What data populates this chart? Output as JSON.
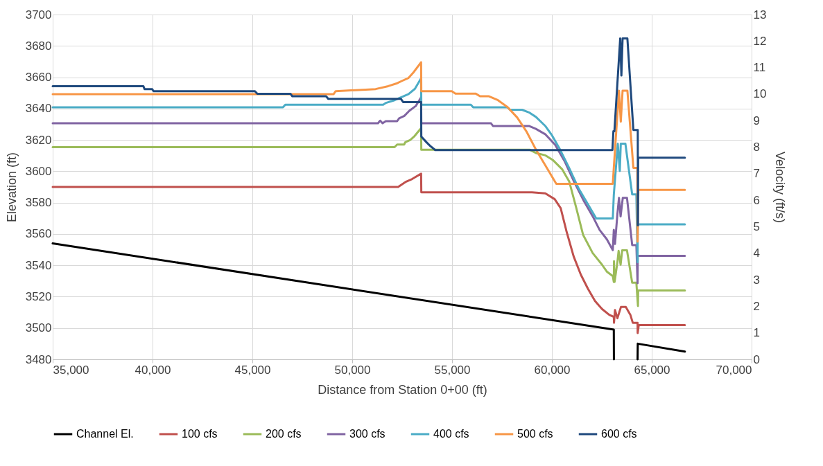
{
  "chart_data": {
    "type": "line",
    "xlabel": "Distance from Station 0+00 (ft)",
    "ylabel": "Elevation (ft)",
    "y2label": "Velocity (ft/s)",
    "xlim": [
      35000,
      70000
    ],
    "xticks": [
      {
        "value": 35000,
        "label": "35,000"
      },
      {
        "value": 40000,
        "label": "40,000"
      },
      {
        "value": 45000,
        "label": "45,000"
      },
      {
        "value": 50000,
        "label": "50,000"
      },
      {
        "value": 55000,
        "label": "55,000"
      },
      {
        "value": 60000,
        "label": "60,000"
      },
      {
        "value": 65000,
        "label": "65,000"
      },
      {
        "value": 70000,
        "label": "70,000"
      }
    ],
    "ylim": [
      3480,
      3700
    ],
    "yticks": [
      3480,
      3500,
      3520,
      3540,
      3560,
      3580,
      3600,
      3620,
      3640,
      3660,
      3680,
      3700
    ],
    "y2lim": [
      0,
      13
    ],
    "y2ticks": [
      0,
      1,
      2,
      3,
      4,
      5,
      6,
      7,
      8,
      9,
      10,
      11,
      12,
      13
    ],
    "grid": true,
    "legend": "bottom",
    "series": [
      {
        "name": "Channel El.",
        "color": "#000000",
        "x": [
          35000,
          63100,
          63105,
          63700,
          64290,
          64300,
          66660
        ],
        "values": [
          3554,
          3499,
          3480,
          null,
          3480,
          3490,
          3485
        ]
      },
      {
        "name": "100 cfs",
        "color": "#c0504d",
        "axis": "y2",
        "x": [
          35000,
          52300,
          52700,
          53000,
          53450,
          53460,
          59000,
          59670,
          60140,
          60440,
          60730,
          61090,
          61450,
          61800,
          62160,
          62510,
          62870,
          63100,
          63110,
          63160,
          63280,
          63460,
          63700,
          63930,
          64050,
          64290,
          64295,
          64350,
          66660
        ],
        "values": [
          6.5,
          6.5,
          6.7,
          6.8,
          7.0,
          6.3,
          6.3,
          6.26,
          6.04,
          5.7,
          4.83,
          3.88,
          3.19,
          2.67,
          2.2,
          1.9,
          1.68,
          1.6,
          1.38,
          1.86,
          1.55,
          1.98,
          1.98,
          1.68,
          1.38,
          1.38,
          0.99,
          1.29,
          1.29
        ]
      },
      {
        "name": "200 cfs",
        "color": "#9bbb59",
        "axis": "y2",
        "x": [
          35000,
          52120,
          52250,
          52600,
          52660,
          52910,
          53100,
          53450,
          53460,
          58900,
          59200,
          59680,
          60040,
          60510,
          60870,
          61210,
          61560,
          62040,
          62510,
          62750,
          63050,
          63100,
          63110,
          63140,
          63280,
          63340,
          63440,
          63520,
          63760,
          64020,
          64230,
          64310,
          64320,
          66660
        ],
        "values": [
          8.0,
          8.0,
          8.1,
          8.1,
          8.19,
          8.27,
          8.4,
          8.72,
          7.9,
          7.9,
          7.78,
          7.69,
          7.52,
          7.17,
          6.7,
          5.74,
          4.7,
          4.01,
          3.57,
          3.31,
          3.14,
          2.92,
          3.7,
          2.92,
          3.66,
          4.09,
          3.57,
          4.11,
          4.11,
          2.89,
          2.89,
          2.01,
          2.6,
          2.6
        ]
      },
      {
        "name": "300 cfs",
        "color": "#8064a2",
        "axis": "y2",
        "x": [
          35000,
          51290,
          51400,
          51520,
          51680,
          52250,
          52350,
          52610,
          52860,
          53180,
          53450,
          53460,
          56950,
          57050,
          58850,
          59200,
          59680,
          60160,
          60630,
          61110,
          61580,
          62040,
          62390,
          62750,
          63050,
          63100,
          63160,
          63280,
          63360,
          63440,
          63550,
          63760,
          64020,
          64230,
          64290,
          64300,
          66660
        ],
        "values": [
          8.9,
          8.9,
          9.0,
          8.9,
          8.98,
          8.98,
          9.09,
          9.18,
          9.37,
          9.55,
          9.88,
          8.9,
          8.9,
          8.8,
          8.8,
          8.69,
          8.48,
          8.09,
          7.48,
          6.7,
          6.0,
          5.4,
          4.88,
          4.53,
          4.12,
          4.88,
          4.35,
          5.48,
          6.09,
          5.39,
          6.09,
          6.09,
          4.31,
          4.31,
          2.87,
          3.9,
          3.9
        ]
      },
      {
        "name": "400 cfs",
        "color": "#4bacc6",
        "axis": "y2",
        "x": [
          35000,
          46530,
          46650,
          51550,
          51690,
          52120,
          52440,
          52820,
          53140,
          53450,
          53460,
          55940,
          56060,
          57780,
          57900,
          58500,
          58850,
          59200,
          59680,
          60010,
          60400,
          60860,
          61340,
          61820,
          62220,
          63050,
          63100,
          63300,
          63400,
          63450,
          63680,
          64020,
          64230,
          64290,
          64300,
          66660
        ],
        "values": [
          9.5,
          9.5,
          9.6,
          9.6,
          9.67,
          9.77,
          9.88,
          10.0,
          10.2,
          10.6,
          9.6,
          9.6,
          9.5,
          9.5,
          9.41,
          9.41,
          9.31,
          9.14,
          8.79,
          8.44,
          7.92,
          7.22,
          6.44,
          5.83,
          5.31,
          5.31,
          6.2,
          8.13,
          7.1,
          8.13,
          8.13,
          6.22,
          6.22,
          3.66,
          5.09,
          5.09
        ]
      },
      {
        "name": "500 cfs",
        "color": "#f79646",
        "axis": "y2",
        "x": [
          35000,
          49070,
          49170,
          51170,
          51800,
          52250,
          52500,
          52820,
          53070,
          53450,
          53460,
          54990,
          55170,
          56180,
          56400,
          56830,
          57300,
          57780,
          58260,
          58720,
          59200,
          59680,
          60220,
          63050,
          63100,
          63360,
          63450,
          63540,
          63780,
          64080,
          64280,
          64290,
          64330,
          66660
        ],
        "values": [
          10.0,
          10.0,
          10.11,
          10.19,
          10.3,
          10.41,
          10.5,
          10.61,
          10.82,
          11.2,
          10.11,
          10.11,
          10.02,
          10.02,
          9.92,
          9.92,
          9.77,
          9.51,
          9.12,
          8.6,
          7.91,
          7.3,
          6.62,
          6.62,
          7.22,
          10.13,
          8.96,
          10.13,
          10.13,
          7.22,
          7.22,
          4.44,
          6.39,
          6.39
        ]
      },
      {
        "name": "600 cfs",
        "color": "#1f497d",
        "axis": "y2",
        "x": [
          35000,
          39540,
          39600,
          39980,
          40050,
          45130,
          45250,
          46910,
          47000,
          48690,
          48800,
          52440,
          52550,
          53450,
          53460,
          53700,
          53900,
          54160,
          63030,
          63080,
          63130,
          63420,
          63480,
          63540,
          63780,
          64080,
          64300,
          64310,
          64320,
          66660
        ],
        "values": [
          10.3,
          10.3,
          10.19,
          10.19,
          10.11,
          10.11,
          10.01,
          10.01,
          9.92,
          9.92,
          9.82,
          9.82,
          9.7,
          9.7,
          8.4,
          8.2,
          8.05,
          7.89,
          7.89,
          8.6,
          8.6,
          12.1,
          10.7,
          12.1,
          12.1,
          8.65,
          8.65,
          5.05,
          7.6,
          7.6
        ]
      }
    ]
  }
}
